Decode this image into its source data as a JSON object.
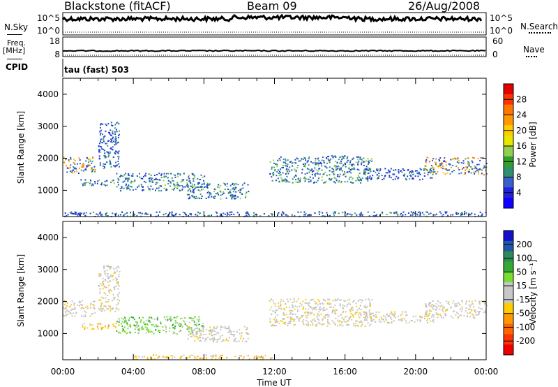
{
  "header": {
    "station": "Blackstone (fitACF)",
    "beam": "Beam 09",
    "date": "26/Aug/2008"
  },
  "strips": {
    "nsky_label": "N.Sky",
    "nsky_ticks": [
      "10^5",
      "10^0"
    ],
    "nsearch_label": "N.Search",
    "nsearch_ticks": [
      "10^5",
      "10^0"
    ],
    "freq_label_1": "Freq.",
    "freq_label_2": "[MHz]",
    "freq_ticks": [
      "18",
      "8"
    ],
    "nave_label": "Nave",
    "nave_ticks": [
      "60",
      "0"
    ],
    "cpid_label": "CPID",
    "cpid_value": "tau (fast) 503"
  },
  "chart_data": [
    {
      "type": "heatmap",
      "title": "",
      "ylabel": "Slant Range [km]",
      "yticks": [
        "4000",
        "3000",
        "2000",
        "1000"
      ],
      "ylim": [
        180,
        4500
      ],
      "xlim_hours": [
        0,
        24
      ],
      "colorbar_label": "Power [dB]",
      "colorbar_ticks": [
        "28",
        "24",
        "20",
        "16",
        "12",
        "8",
        "4"
      ],
      "colorbar_colors": [
        "#e00000",
        "#ff3300",
        "#ff7700",
        "#ff9900",
        "#ffcc00",
        "#e6e600",
        "#8fd14f",
        "#33a02c",
        "#2f8f6f",
        "#3a5fcd",
        "#2222dd",
        "#1100ff"
      ],
      "echo_regions": [
        {
          "t_start": 0.0,
          "t_end": 1.8,
          "r_min": 1550,
          "r_max": 2050,
          "level": "high"
        },
        {
          "t_start": 1.0,
          "t_end": 3.0,
          "r_min": 1150,
          "r_max": 1350,
          "level": "medium"
        },
        {
          "t_start": 2.0,
          "t_end": 3.2,
          "r_min": 1700,
          "r_max": 3150,
          "level": "low"
        },
        {
          "t_start": 3.0,
          "t_end": 8.0,
          "r_min": 1000,
          "r_max": 1550,
          "level": "medium"
        },
        {
          "t_start": 7.0,
          "t_end": 10.5,
          "r_min": 750,
          "r_max": 1250,
          "level": "medium"
        },
        {
          "t_start": 11.7,
          "t_end": 17.5,
          "r_min": 1250,
          "r_max": 2100,
          "level": "medium"
        },
        {
          "t_start": 17.0,
          "t_end": 21.0,
          "r_min": 1350,
          "r_max": 1700,
          "level": "low"
        },
        {
          "t_start": 20.5,
          "t_end": 24.0,
          "r_min": 1500,
          "r_max": 2050,
          "level": "high"
        },
        {
          "t_start": 0.0,
          "t_end": 24.0,
          "r_min": 200,
          "r_max": 350,
          "level": "low"
        }
      ]
    },
    {
      "type": "heatmap",
      "title": "",
      "ylabel": "Slant Range [km]",
      "yticks": [
        "4000",
        "3000",
        "2000",
        "1000"
      ],
      "ylim": [
        180,
        4500
      ],
      "xlim_hours": [
        0,
        24
      ],
      "colorbar_label": "Velocity [m s⁻¹]",
      "colorbar_ticks": [
        "200",
        "100",
        "50",
        "15",
        "-15",
        "-50",
        "-100",
        "-200"
      ],
      "colorbar_colors": [
        "#1111cc",
        "#2255aa",
        "#2e8b57",
        "#33aa33",
        "#77dd33",
        "#c8c8c8",
        "#c8c8c8",
        "#ffcc00",
        "#ff9900",
        "#ff6600",
        "#ff3300",
        "#ee0000"
      ],
      "echo_regions": [
        {
          "t_start": 0.0,
          "t_end": 1.8,
          "r_min": 1550,
          "r_max": 2050,
          "level": "ground"
        },
        {
          "t_start": 1.0,
          "t_end": 3.0,
          "r_min": 1150,
          "r_max": 1350,
          "level": "negative"
        },
        {
          "t_start": 2.0,
          "t_end": 3.2,
          "r_min": 1700,
          "r_max": 3150,
          "level": "ground"
        },
        {
          "t_start": 3.0,
          "t_end": 8.0,
          "r_min": 1000,
          "r_max": 1550,
          "level": "positive"
        },
        {
          "t_start": 7.0,
          "t_end": 10.5,
          "r_min": 750,
          "r_max": 1250,
          "level": "ground"
        },
        {
          "t_start": 11.7,
          "t_end": 17.5,
          "r_min": 1250,
          "r_max": 2100,
          "level": "ground"
        },
        {
          "t_start": 17.0,
          "t_end": 21.0,
          "r_min": 1350,
          "r_max": 1700,
          "level": "ground"
        },
        {
          "t_start": 20.5,
          "t_end": 24.0,
          "r_min": 1500,
          "r_max": 2050,
          "level": "ground"
        },
        {
          "t_start": 4.0,
          "t_end": 12.0,
          "r_min": 200,
          "r_max": 350,
          "level": "negative"
        }
      ]
    }
  ],
  "x_axis": {
    "ticks": [
      "00:00",
      "04:00",
      "08:00",
      "12:00",
      "16:00",
      "20:00",
      "00:00"
    ],
    "label": "Time UT"
  }
}
